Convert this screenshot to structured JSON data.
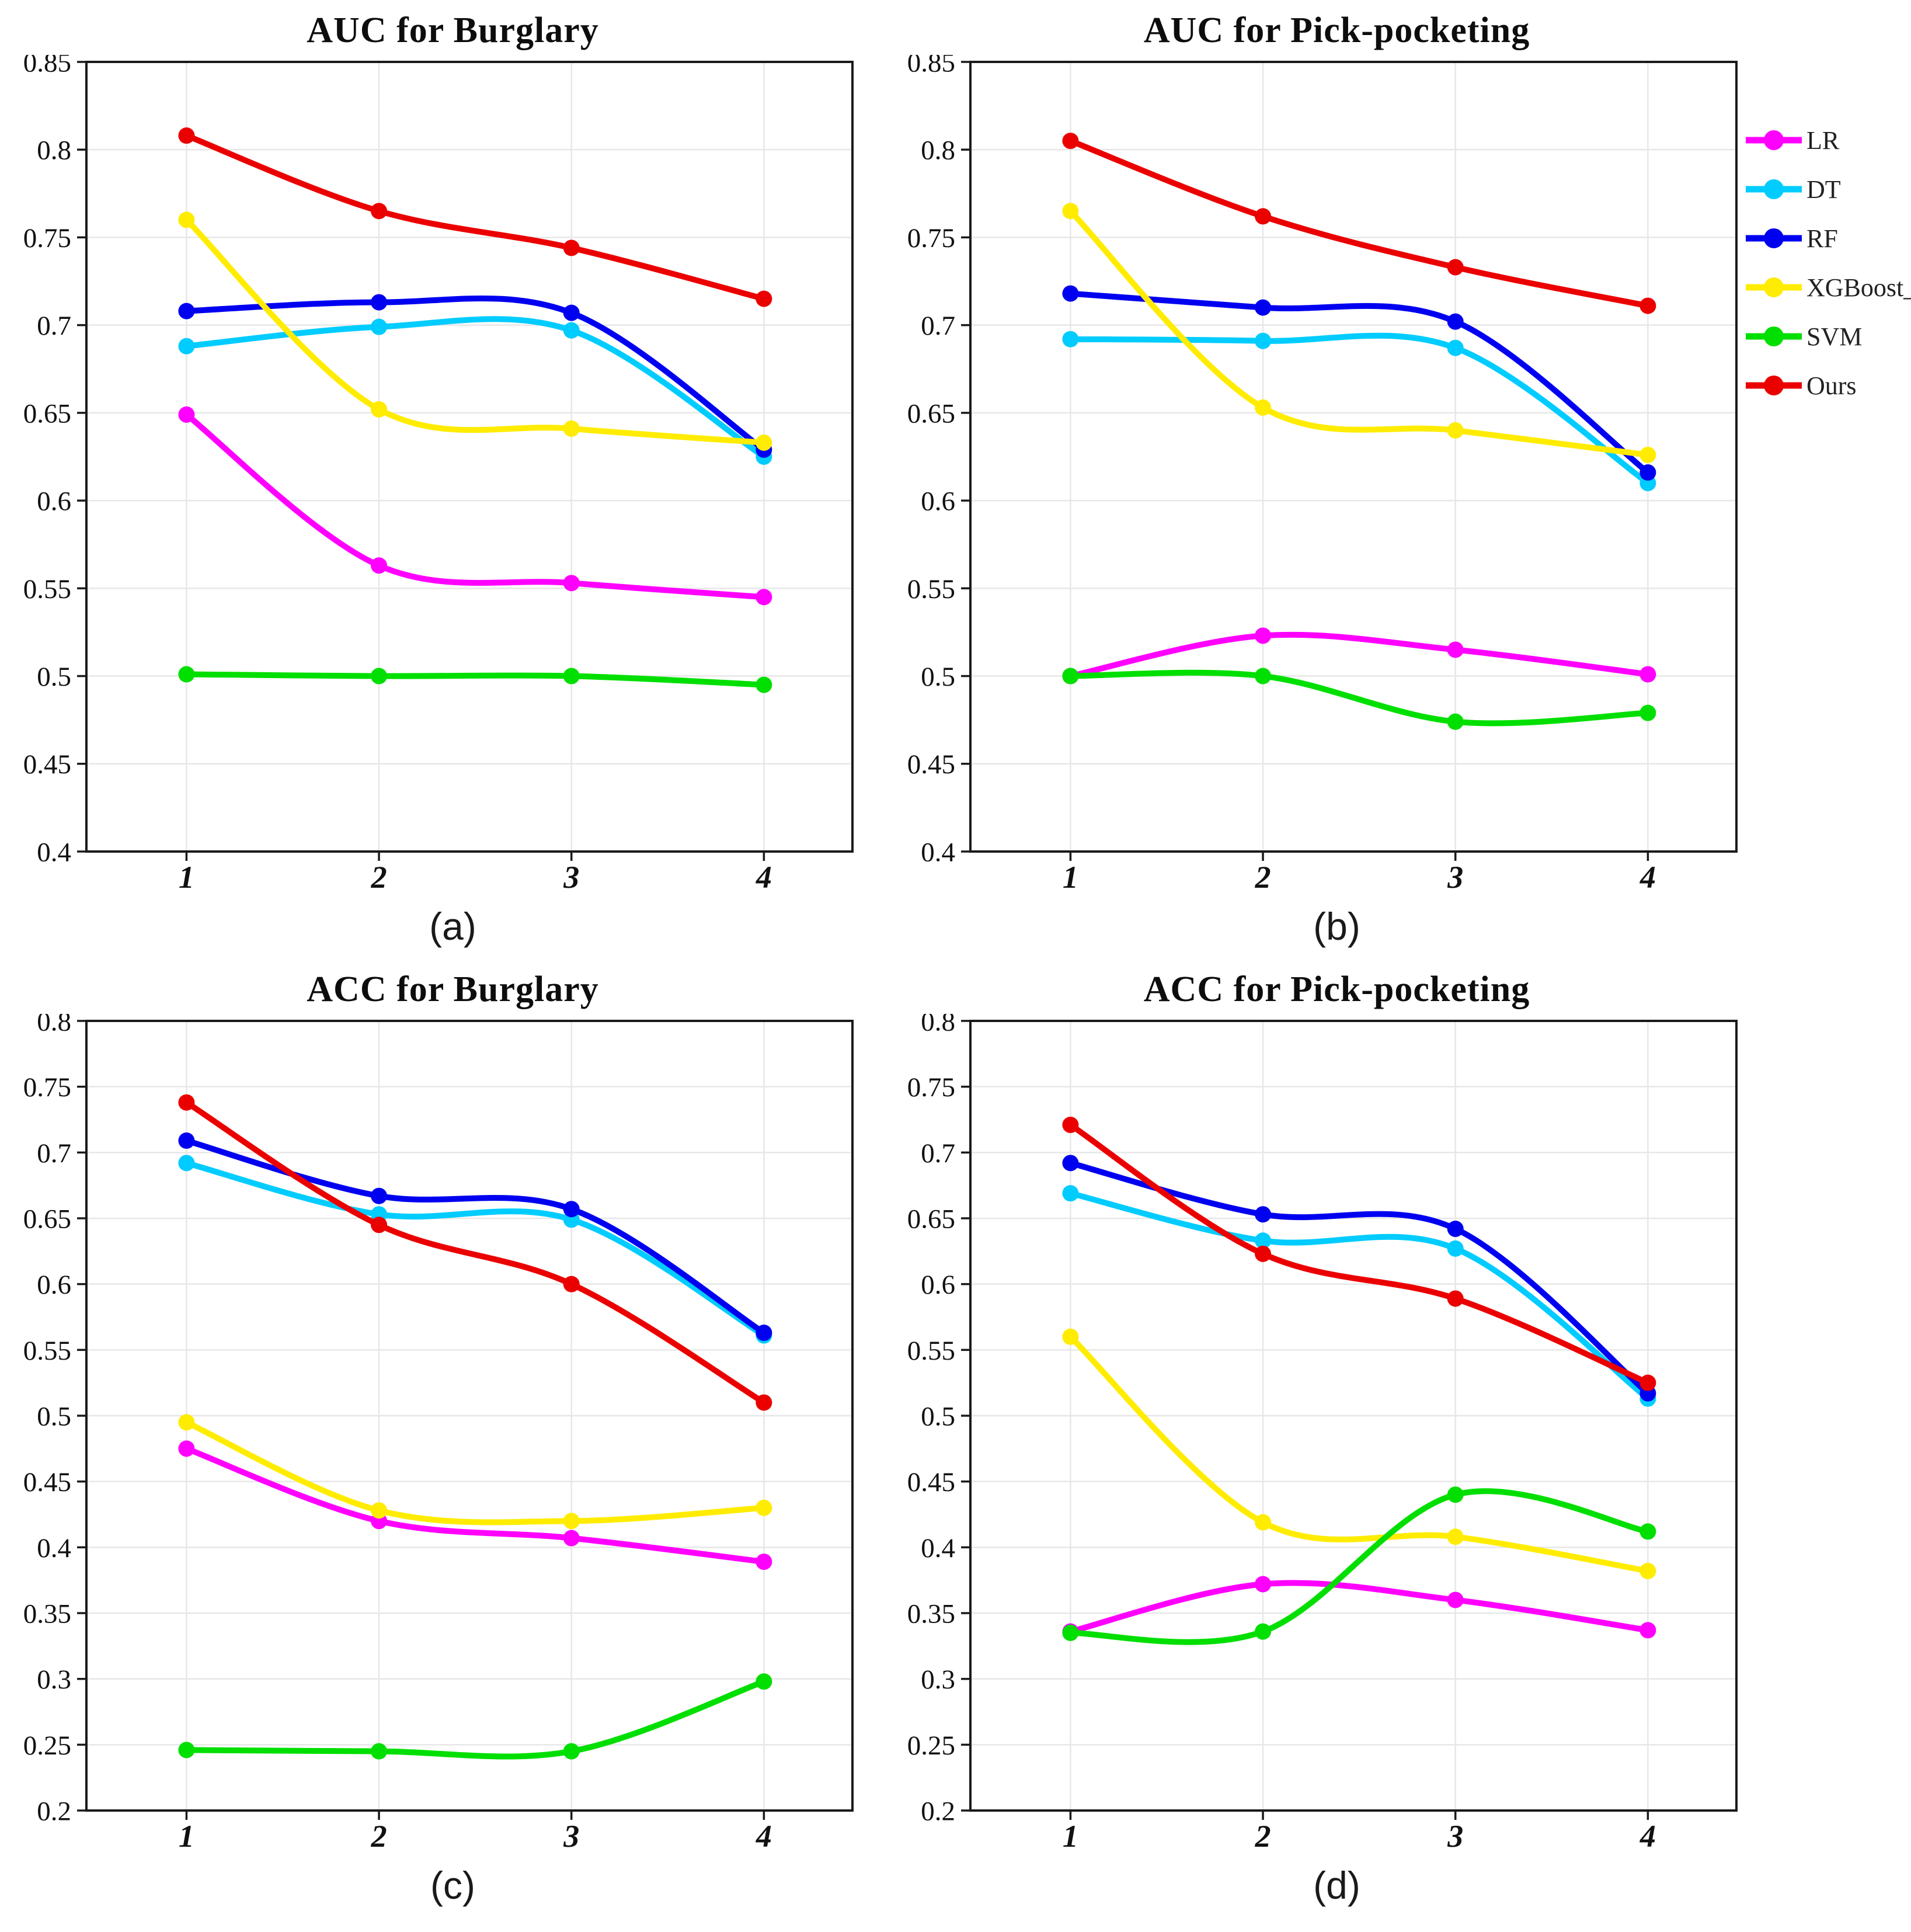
{
  "page": {
    "background": "#ffffff"
  },
  "legend": {
    "items": [
      {
        "label": "LR",
        "color": "#FF00FF"
      },
      {
        "label": "DT",
        "color": "#00CCFF"
      },
      {
        "label": "RF",
        "color": "#0000F0"
      },
      {
        "label": "XGBoost_",
        "color": "#FFEC00"
      },
      {
        "label": "SVM",
        "color": "#00DF00"
      },
      {
        "label": "Ours",
        "color": "#EB0000"
      }
    ]
  },
  "chart_data": [
    {
      "id": "a",
      "type": "line",
      "title": "AUC for Burglary",
      "caption": "(a)",
      "x": [
        1,
        2,
        3,
        4
      ],
      "xlim": [
        0.48,
        4.46
      ],
      "ylim": [
        0.4,
        0.85
      ],
      "ytick_step": 0.05,
      "grid": true,
      "legend_position": "outside-right",
      "series": [
        {
          "name": "LR",
          "color": "#FF00FF",
          "values": [
            0.649,
            0.563,
            0.553,
            0.545
          ]
        },
        {
          "name": "DT",
          "color": "#00CCFF",
          "values": [
            0.688,
            0.699,
            0.697,
            0.625
          ]
        },
        {
          "name": "RF",
          "color": "#0000F0",
          "values": [
            0.708,
            0.713,
            0.707,
            0.629
          ]
        },
        {
          "name": "XGBoost_",
          "color": "#FFEC00",
          "values": [
            0.76,
            0.652,
            0.641,
            0.633
          ]
        },
        {
          "name": "SVM",
          "color": "#00DF00",
          "values": [
            0.501,
            0.5,
            0.5,
            0.495
          ]
        },
        {
          "name": "Ours",
          "color": "#EB0000",
          "values": [
            0.808,
            0.765,
            0.744,
            0.715
          ]
        }
      ]
    },
    {
      "id": "b",
      "type": "line",
      "title": "AUC for Pick-pocketing",
      "caption": "(b)",
      "x": [
        1,
        2,
        3,
        4
      ],
      "xlim": [
        0.48,
        4.46
      ],
      "ylim": [
        0.4,
        0.85
      ],
      "ytick_step": 0.05,
      "grid": true,
      "series": [
        {
          "name": "LR",
          "color": "#FF00FF",
          "values": [
            0.5,
            0.523,
            0.515,
            0.501
          ]
        },
        {
          "name": "DT",
          "color": "#00CCFF",
          "values": [
            0.692,
            0.691,
            0.687,
            0.61
          ]
        },
        {
          "name": "RF",
          "color": "#0000F0",
          "values": [
            0.718,
            0.71,
            0.702,
            0.616
          ]
        },
        {
          "name": "XGBoost_",
          "color": "#FFEC00",
          "values": [
            0.765,
            0.653,
            0.64,
            0.626
          ]
        },
        {
          "name": "SVM",
          "color": "#00DF00",
          "values": [
            0.5,
            0.5,
            0.474,
            0.479
          ]
        },
        {
          "name": "Ours",
          "color": "#EB0000",
          "values": [
            0.805,
            0.762,
            0.733,
            0.711
          ]
        }
      ]
    },
    {
      "id": "c",
      "type": "line",
      "title": "ACC for Burglary",
      "caption": "(c)",
      "x": [
        1,
        2,
        3,
        4
      ],
      "xlim": [
        0.48,
        4.46
      ],
      "ylim": [
        0.2,
        0.8
      ],
      "ytick_step": 0.05,
      "grid": true,
      "series": [
        {
          "name": "LR",
          "color": "#FF00FF",
          "values": [
            0.475,
            0.42,
            0.407,
            0.389
          ]
        },
        {
          "name": "DT",
          "color": "#00CCFF",
          "values": [
            0.692,
            0.653,
            0.649,
            0.561
          ]
        },
        {
          "name": "RF",
          "color": "#0000F0",
          "values": [
            0.709,
            0.667,
            0.657,
            0.563
          ]
        },
        {
          "name": "XGBoost_",
          "color": "#FFEC00",
          "values": [
            0.495,
            0.428,
            0.42,
            0.43
          ]
        },
        {
          "name": "SVM",
          "color": "#00DF00",
          "values": [
            0.246,
            0.245,
            0.245,
            0.298
          ]
        },
        {
          "name": "Ours",
          "color": "#EB0000",
          "values": [
            0.738,
            0.645,
            0.6,
            0.51
          ]
        }
      ]
    },
    {
      "id": "d",
      "type": "line",
      "title": "ACC for Pick-pocketing",
      "caption": "(d)",
      "x": [
        1,
        2,
        3,
        4
      ],
      "xlim": [
        0.48,
        4.46
      ],
      "ylim": [
        0.2,
        0.8
      ],
      "ytick_step": 0.05,
      "grid": true,
      "series": [
        {
          "name": "LR",
          "color": "#FF00FF",
          "values": [
            0.336,
            0.372,
            0.36,
            0.337
          ]
        },
        {
          "name": "DT",
          "color": "#00CCFF",
          "values": [
            0.669,
            0.633,
            0.627,
            0.513
          ]
        },
        {
          "name": "RF",
          "color": "#0000F0",
          "values": [
            0.692,
            0.653,
            0.642,
            0.517
          ]
        },
        {
          "name": "XGBoost_",
          "color": "#FFEC00",
          "values": [
            0.56,
            0.419,
            0.408,
            0.382
          ]
        },
        {
          "name": "SVM",
          "color": "#00DF00",
          "values": [
            0.335,
            0.336,
            0.44,
            0.412
          ]
        },
        {
          "name": "Ours",
          "color": "#EB0000",
          "values": [
            0.721,
            0.623,
            0.589,
            0.525
          ]
        }
      ]
    }
  ],
  "style": {
    "grid_color": "#e7e7e7",
    "frame_color": "#1a1a1a",
    "line_width": 10,
    "marker_radius": 14
  }
}
